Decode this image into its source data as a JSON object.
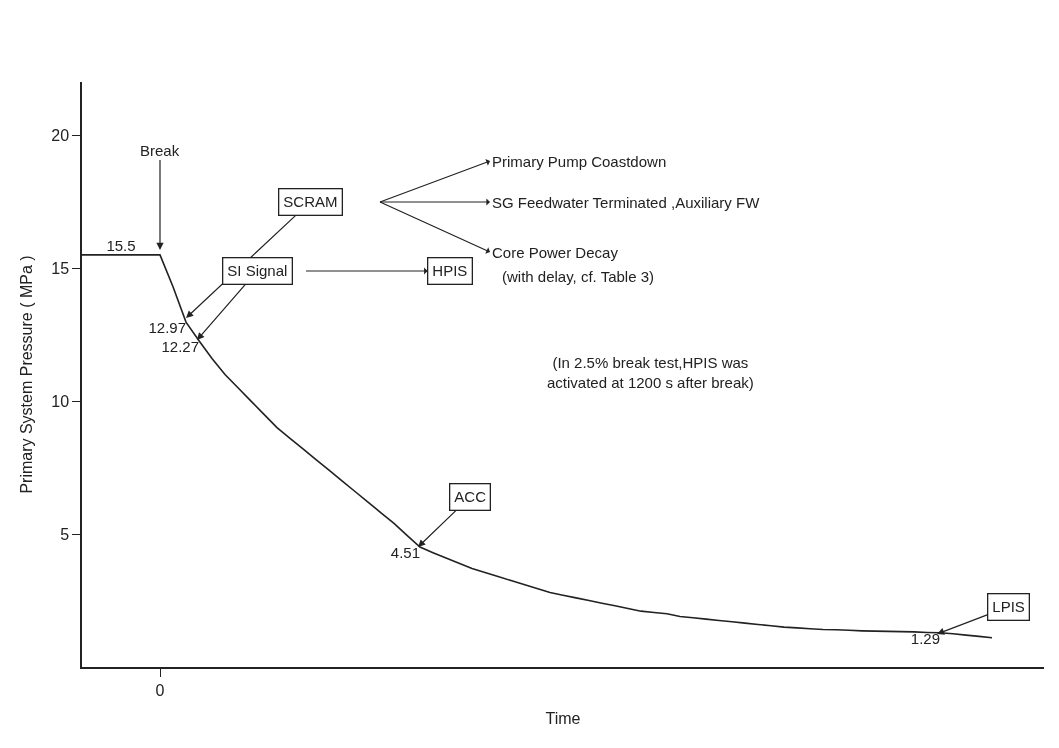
{
  "chart_data": {
    "type": "line",
    "xlabel": "Time",
    "ylabel": "Primary System Pressure ( MPa )",
    "categories": [
      null,
      null,
      null,
      null,
      null,
      null,
      "0",
      null,
      null,
      null,
      null,
      null,
      null,
      null,
      null,
      null,
      null,
      null,
      null,
      null,
      null,
      null,
      null,
      null,
      null,
      null,
      null,
      null,
      null,
      null,
      null,
      null,
      null,
      null,
      null,
      null,
      null,
      null,
      null,
      null,
      null,
      null,
      null,
      null,
      null,
      null,
      null,
      null,
      null,
      null,
      null,
      null,
      null,
      null,
      null,
      null,
      null,
      null,
      null,
      null,
      null,
      null,
      null,
      null,
      null,
      null,
      null,
      null,
      null,
      null,
      null,
      null,
      null,
      null,
      null
    ],
    "values": [
      15.5,
      15.5,
      15.5,
      15.5,
      15.5,
      15.5,
      15.5,
      14.3,
      12.97,
      12.27,
      11.6,
      11.0,
      10.5,
      10.0,
      9.5,
      9.0,
      8.6,
      8.2,
      7.8,
      7.4,
      7.0,
      6.6,
      6.2,
      5.8,
      5.4,
      4.95,
      4.51,
      4.3,
      4.1,
      3.9,
      3.7,
      3.55,
      3.4,
      3.25,
      3.1,
      2.95,
      2.8,
      2.7,
      2.6,
      2.5,
      2.4,
      2.3,
      2.2,
      2.1,
      2.05,
      2.0,
      1.9,
      1.85,
      1.8,
      1.75,
      1.7,
      1.65,
      1.6,
      1.55,
      1.5,
      1.47,
      1.44,
      1.41,
      1.4,
      1.38,
      1.36,
      1.35,
      1.34,
      1.33,
      1.32,
      1.3,
      1.29,
      1.25,
      1.2,
      1.15,
      1.1,
      null,
      null,
      null,
      null
    ],
    "value_labels": [
      null,
      null,
      null,
      "15.5",
      null,
      null,
      null,
      null,
      "12.97",
      "12.27",
      null,
      null,
      null,
      null,
      null,
      null,
      null,
      null,
      null,
      null,
      null,
      null,
      null,
      null,
      null,
      null,
      "4.51",
      null,
      null,
      null,
      null,
      null,
      null,
      null,
      null,
      null,
      null,
      null,
      null,
      null,
      null,
      null,
      null,
      null,
      null,
      null,
      null,
      null,
      null,
      null,
      null,
      null,
      null,
      null,
      null,
      null,
      null,
      null,
      null,
      null,
      null,
      null,
      null,
      null,
      null,
      null,
      "1.29",
      null,
      null,
      null,
      null,
      null,
      null,
      null,
      null
    ],
    "color": "#222222",
    "ylim": [
      0,
      22
    ],
    "yticks": [
      5,
      10,
      15,
      20
    ],
    "marker": "none",
    "line_style": "solid",
    "annotations": [
      "Break",
      "SCRAM",
      "Primary Pump Coastdown",
      "SG Feedwater Terminated ,Auxiliary FW",
      "Core Power Decay",
      "SI Signal",
      "HPIS",
      "(with delay, cf. Table 3)",
      "(In 2.5% break test,HPIS was\nactivated at 1200 s after break)",
      "ACC",
      "LPIS"
    ]
  }
}
